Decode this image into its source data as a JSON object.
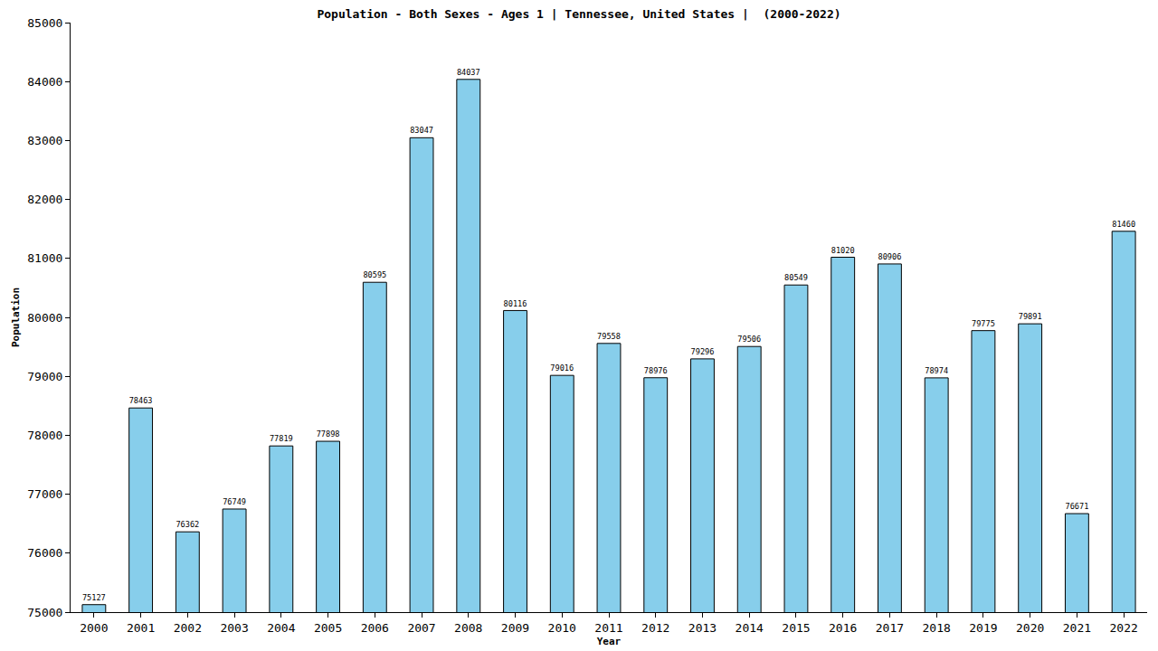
{
  "chart_data": {
    "type": "bar",
    "title": "Population - Both Sexes - Ages 1 | Tennessee, United States |  (2000-2022)",
    "x_label": "Year",
    "y_label": "Population",
    "categories": [
      "2000",
      "2001",
      "2002",
      "2003",
      "2004",
      "2005",
      "2006",
      "2007",
      "2008",
      "2009",
      "2010",
      "2011",
      "2012",
      "2013",
      "2014",
      "2015",
      "2016",
      "2017",
      "2018",
      "2019",
      "2020",
      "2021",
      "2022"
    ],
    "values": [
      75127,
      78463,
      76362,
      76749,
      77819,
      77898,
      80595,
      83047,
      84037,
      80116,
      79016,
      79558,
      78976,
      79296,
      79506,
      80549,
      81020,
      80906,
      78974,
      79775,
      79891,
      76671,
      81460
    ],
    "color": "#87ceeb",
    "ylim": [
      75000,
      85000
    ],
    "yticks": [
      75000,
      76000,
      77000,
      78000,
      79000,
      80000,
      81000,
      82000,
      83000,
      84000,
      85000
    ],
    "grid": false,
    "data_labels": true
  }
}
